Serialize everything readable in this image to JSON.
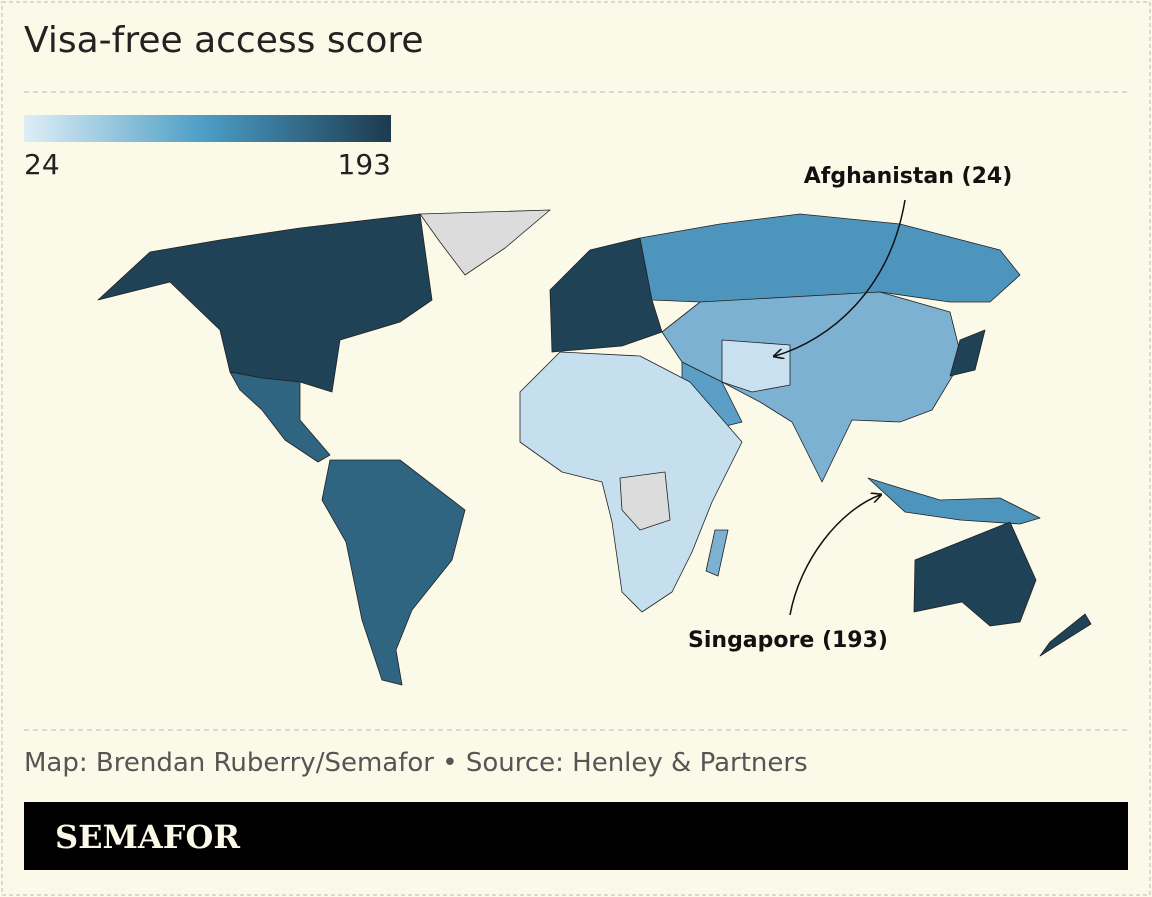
{
  "title": "Visa-free access score",
  "legend": {
    "min": 24,
    "max": 193
  },
  "annotations": [
    {
      "label": "Afghanistan (24)"
    },
    {
      "label": "Singapore (193)"
    }
  ],
  "footer": {
    "credit": "Map: Brendan Ruberry/Semafor • Source: Henley & Partners"
  },
  "brand": "SEMAFOR"
}
